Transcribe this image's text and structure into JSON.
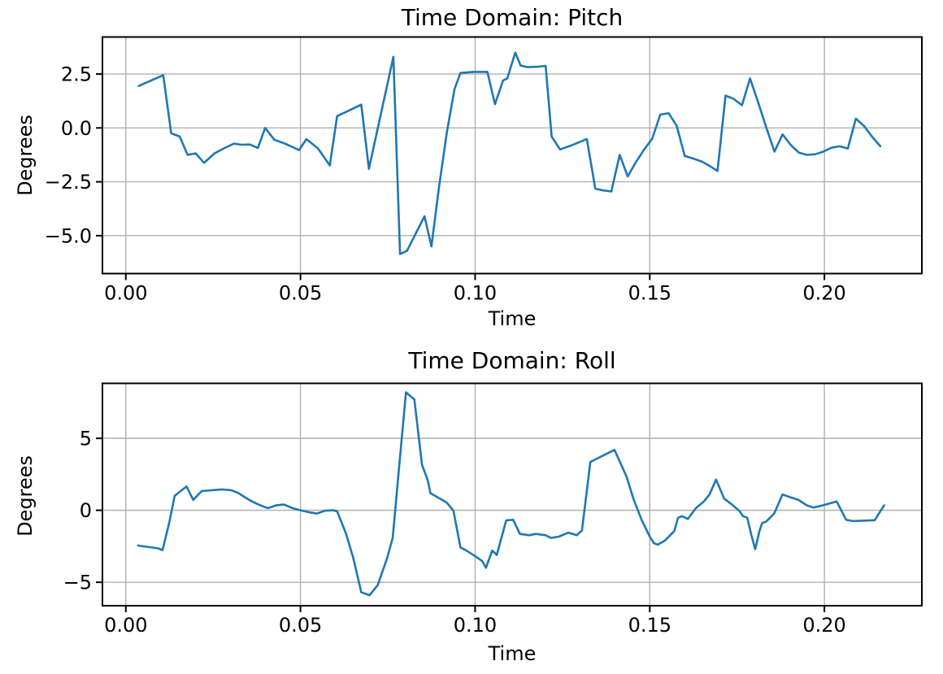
{
  "figure": {
    "background": "#ffffff",
    "text_color": "#000000",
    "spine_color": "#000000",
    "grid_color": "#b0b0b0"
  },
  "chart_data": [
    {
      "id": "pitch",
      "type": "line",
      "title": "Time Domain: Pitch",
      "xlabel": "Time",
      "ylabel": "Degrees",
      "line_color": "#1f77b4",
      "grid": true,
      "legend": "none",
      "xlim": [
        -0.0067,
        0.2279
      ],
      "ylim": [
        -6.76,
        4.22
      ],
      "xticks": [
        0.0,
        0.05,
        0.1,
        0.15,
        0.2
      ],
      "xtick_labels": [
        "0.00",
        "0.05",
        "0.10",
        "0.15",
        "0.20"
      ],
      "yticks": [
        2.5,
        0.0,
        -2.5,
        -5.0
      ],
      "ytick_labels": [
        "2.5",
        "0.0",
        "−2.5",
        "−5.0"
      ],
      "series": [
        {
          "name": "Pitch",
          "x": [
            0.0037,
            0.0107,
            0.013,
            0.0154,
            0.0177,
            0.02,
            0.0224,
            0.0254,
            0.0281,
            0.0309,
            0.0331,
            0.0355,
            0.0378,
            0.0399,
            0.0425,
            0.0456,
            0.0496,
            0.0517,
            0.055,
            0.0584,
            0.0605,
            0.0642,
            0.0674,
            0.0696,
            0.0766,
            0.0785,
            0.0805,
            0.0855,
            0.0875,
            0.0897,
            0.0919,
            0.0941,
            0.0958,
            0.0994,
            0.1035,
            0.1057,
            0.108,
            0.1092,
            0.1115,
            0.113,
            0.115,
            0.118,
            0.1202,
            0.1219,
            0.1243,
            0.1274,
            0.1297,
            0.132,
            0.1344,
            0.1367,
            0.139,
            0.1414,
            0.1437,
            0.146,
            0.1484,
            0.1507,
            0.153,
            0.1554,
            0.1577,
            0.16,
            0.1624,
            0.1647,
            0.167,
            0.1694,
            0.1717,
            0.174,
            0.1764,
            0.1787,
            0.181,
            0.1834,
            0.1857,
            0.188,
            0.1904,
            0.1927,
            0.195,
            0.1974,
            0.1997,
            0.202,
            0.2044,
            0.2067,
            0.209,
            0.2114,
            0.2137,
            0.216
          ],
          "y": [
            1.95,
            2.45,
            -0.25,
            -0.4,
            -1.25,
            -1.18,
            -1.62,
            -1.18,
            -0.95,
            -0.73,
            -0.78,
            -0.77,
            -0.93,
            0.0,
            -0.55,
            -0.73,
            -1.03,
            -0.52,
            -0.95,
            -1.74,
            0.55,
            0.83,
            1.08,
            -1.9,
            3.3,
            -5.85,
            -5.7,
            -4.1,
            -5.5,
            -2.7,
            -0.2,
            1.8,
            2.55,
            2.6,
            2.6,
            1.1,
            2.2,
            2.3,
            3.5,
            2.9,
            2.82,
            2.84,
            2.88,
            -0.4,
            -1.0,
            -0.82,
            -0.67,
            -0.52,
            -2.82,
            -2.9,
            -2.95,
            -1.25,
            -2.25,
            -1.6,
            -1.0,
            -0.5,
            0.62,
            0.68,
            0.1,
            -1.3,
            -1.42,
            -1.55,
            -1.75,
            -2.0,
            1.5,
            1.35,
            1.05,
            2.3,
            1.2,
            0.0,
            -1.1,
            -0.3,
            -0.8,
            -1.15,
            -1.25,
            -1.22,
            -1.1,
            -0.92,
            -0.85,
            -0.96,
            0.43,
            0.08,
            -0.42,
            -0.85
          ]
        }
      ]
    },
    {
      "id": "roll",
      "type": "line",
      "title": "Time Domain: Roll",
      "xlabel": "Time",
      "ylabel": "Degrees",
      "line_color": "#1f77b4",
      "grid": true,
      "legend": "none",
      "xlim": [
        -0.0067,
        0.2279
      ],
      "ylim": [
        -6.63,
        8.82
      ],
      "xticks": [
        0.0,
        0.05,
        0.1,
        0.15,
        0.2
      ],
      "xtick_labels": [
        "0.00",
        "0.05",
        "0.10",
        "0.15",
        "0.20"
      ],
      "yticks": [
        5,
        0,
        -5
      ],
      "ytick_labels": [
        "5",
        "0",
        "−5"
      ],
      "series": [
        {
          "name": "Roll",
          "x": [
            0.0035,
            0.0093,
            0.0105,
            0.0124,
            0.014,
            0.0151,
            0.0174,
            0.0193,
            0.0217,
            0.024,
            0.0275,
            0.0302,
            0.0322,
            0.0353,
            0.0376,
            0.0395,
            0.0407,
            0.043,
            0.0453,
            0.0477,
            0.05,
            0.0523,
            0.0547,
            0.057,
            0.0593,
            0.0605,
            0.063,
            0.0651,
            0.0674,
            0.0698,
            0.0721,
            0.0748,
            0.0764,
            0.0783,
            0.0802,
            0.0826,
            0.0848,
            0.0864,
            0.0872,
            0.0899,
            0.0919,
            0.0938,
            0.0958,
            0.0973,
            0.0997,
            0.102,
            0.1031,
            0.1049,
            0.1062,
            0.1089,
            0.1109,
            0.1128,
            0.1155,
            0.1174,
            0.1202,
            0.1217,
            0.124,
            0.1267,
            0.1291,
            0.1306,
            0.133,
            0.1337,
            0.1399,
            0.1434,
            0.1453,
            0.1477,
            0.15,
            0.1512,
            0.1523,
            0.1543,
            0.157,
            0.1581,
            0.1593,
            0.1609,
            0.1632,
            0.1655,
            0.1671,
            0.169,
            0.1713,
            0.1733,
            0.1756,
            0.1767,
            0.1779,
            0.1791,
            0.1802,
            0.1814,
            0.1822,
            0.1833,
            0.1856,
            0.188,
            0.1903,
            0.1926,
            0.195,
            0.1969,
            0.1997,
            0.2035,
            0.2062,
            0.2082,
            0.2144,
            0.2171
          ],
          "y": [
            -2.45,
            -2.65,
            -2.77,
            -0.88,
            1.0,
            1.23,
            1.65,
            0.72,
            1.33,
            1.38,
            1.45,
            1.4,
            1.2,
            0.72,
            0.44,
            0.25,
            0.15,
            0.34,
            0.4,
            0.15,
            0.0,
            -0.13,
            -0.23,
            -0.03,
            0.0,
            -0.07,
            -1.6,
            -3.3,
            -5.7,
            -5.9,
            -5.2,
            -3.33,
            -1.9,
            3.16,
            8.2,
            7.7,
            3.16,
            2.13,
            1.19,
            0.81,
            0.53,
            -0.03,
            -2.58,
            -2.77,
            -3.14,
            -3.52,
            -3.99,
            -2.8,
            -3.1,
            -0.7,
            -0.66,
            -1.64,
            -1.73,
            -1.64,
            -1.73,
            -1.92,
            -1.83,
            -1.55,
            -1.73,
            -1.4,
            3.36,
            3.45,
            4.2,
            2.32,
            0.81,
            -0.69,
            -1.83,
            -2.29,
            -2.39,
            -2.11,
            -1.45,
            -0.51,
            -0.41,
            -0.6,
            0.15,
            0.62,
            1.1,
            2.13,
            0.81,
            0.44,
            -0.03,
            -0.41,
            -0.51,
            -1.73,
            -2.7,
            -1.45,
            -0.88,
            -0.79,
            -0.23,
            1.1,
            0.9,
            0.72,
            0.34,
            0.19,
            0.35,
            0.62,
            -0.66,
            -0.75,
            -0.69,
            0.34
          ]
        }
      ]
    }
  ]
}
